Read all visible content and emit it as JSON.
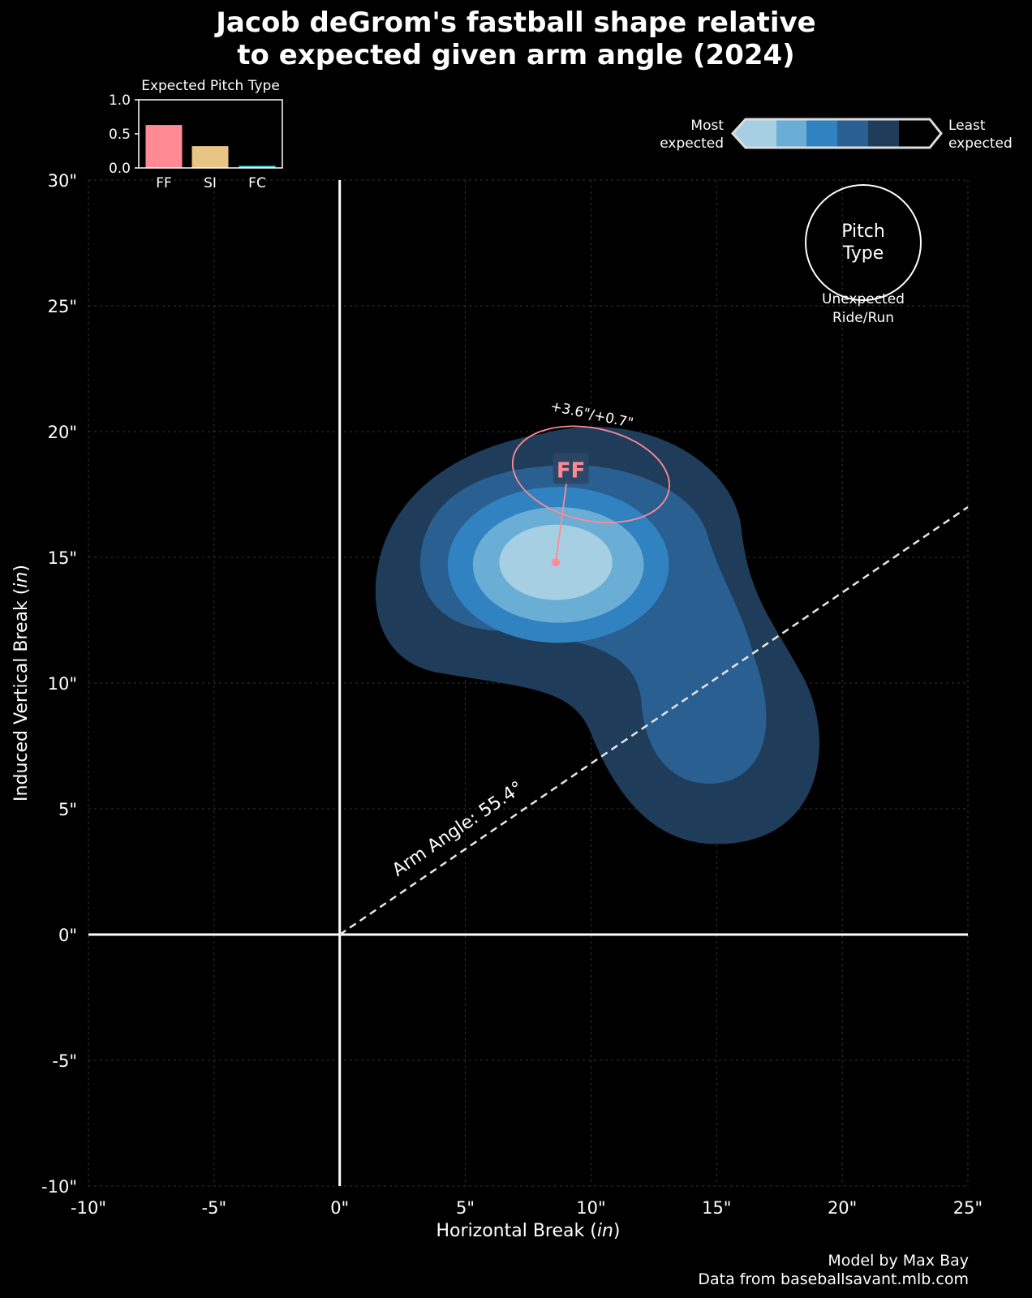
{
  "title_lines": [
    "Jacob deGrom's fastball shape relative",
    "to expected given arm angle (2024)"
  ],
  "footer": [
    "Model by Max Bay",
    "Data from baseballsavant.mlb.com"
  ],
  "colors": {
    "background": "#000000",
    "fastball": "#ff8a93",
    "sinker": "#e8c585",
    "cutter": "#4fd4e0",
    "contour_levels": [
      "#a6cfe3",
      "#6aaed6",
      "#3182c0",
      "#2a5f92",
      "#1f3d5a"
    ]
  },
  "chart_data": [
    {
      "type": "contour",
      "xlabel": "Horizontal Break (in)",
      "ylabel": "Induced Vertical Break (in)",
      "xlim": [
        -10,
        25
      ],
      "ylim": [
        -10,
        30
      ],
      "xticks": [
        -10,
        -5,
        0,
        5,
        10,
        15,
        20,
        25
      ],
      "yticks": [
        -10,
        -5,
        0,
        5,
        10,
        15,
        20,
        25,
        30
      ],
      "xtick_labels": [
        "-10\"",
        "-5\"",
        "0\"",
        "5\"",
        "10\"",
        "15\"",
        "20\"",
        "25\""
      ],
      "ytick_labels": [
        "-10\"",
        "-5\"",
        "0\"",
        "5\"",
        "10\"",
        "15\"",
        "20\"",
        "25\"",
        "30\""
      ],
      "grid": true,
      "arm_angle": {
        "label": "Arm Angle: 55.4°",
        "line_from": [
          0,
          0
        ],
        "line_to": [
          25,
          17
        ]
      },
      "expected_location": {
        "x": 8.6,
        "y": 14.8
      },
      "pitch": {
        "label": "FF",
        "x": 9.2,
        "y": 18.5,
        "ellipse_center": [
          10.0,
          18.3
        ],
        "annotation": "+3.6\"/+0.7\""
      },
      "legend": {
        "colorbar_left": "Most\nexpected",
        "colorbar_right": "Least\nexpected",
        "marker_label": "Pitch\nType",
        "marker_caption": "Unexpected\nRide/Run"
      }
    },
    {
      "type": "bar",
      "title": "Expected Pitch Type",
      "categories": [
        "FF",
        "SI",
        "FC"
      ],
      "values": [
        0.63,
        0.32,
        0.03
      ],
      "ylim": [
        0,
        1
      ],
      "yticks": [
        0.0,
        0.5,
        1.0
      ],
      "ytick_labels": [
        "0.0",
        "0.5",
        "1.0"
      ]
    }
  ]
}
